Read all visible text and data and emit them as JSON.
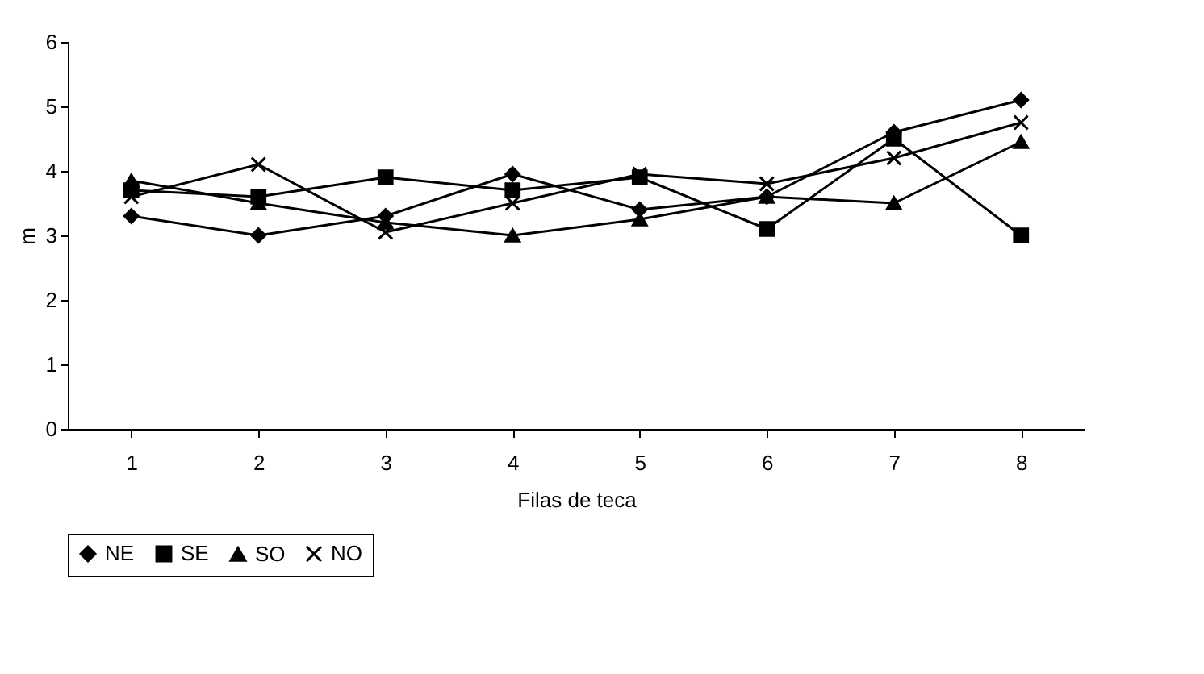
{
  "chart_data": {
    "type": "line",
    "xlabel": "Filas de teca",
    "ylabel": "m",
    "categories": [
      "1",
      "2",
      "3",
      "4",
      "5",
      "6",
      "7",
      "8"
    ],
    "series": [
      {
        "name": "NE",
        "color": "#000000",
        "marker": "diamond",
        "values": [
          3.3,
          3.0,
          3.3,
          3.95,
          3.4,
          3.6,
          4.6,
          5.1
        ]
      },
      {
        "name": "SE",
        "color": "#000000",
        "marker": "square",
        "values": [
          3.7,
          3.6,
          3.9,
          3.7,
          3.9,
          3.1,
          4.5,
          3.0
        ]
      },
      {
        "name": "SO",
        "color": "#000000",
        "marker": "triangle",
        "values": [
          3.85,
          3.5,
          3.2,
          3.0,
          3.25,
          3.6,
          3.5,
          4.45
        ]
      },
      {
        "name": "NO",
        "color": "#000000",
        "marker": "cross",
        "values": [
          3.6,
          4.1,
          3.05,
          3.5,
          3.95,
          3.8,
          4.2,
          4.75
        ]
      }
    ],
    "ylim": [
      0,
      6
    ],
    "yticks": [
      0,
      1,
      2,
      3,
      4,
      5,
      6
    ],
    "grid": false,
    "legend": "bottom",
    "line_style": "solid"
  }
}
